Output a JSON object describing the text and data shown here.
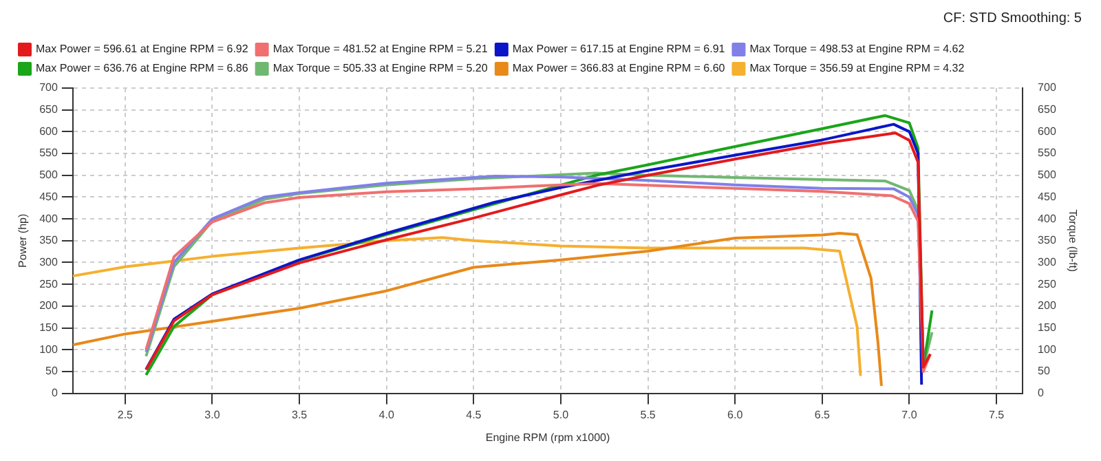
{
  "chart_data": {
    "type": "line",
    "xlabel": "Engine RPM (rpm x1000)",
    "ylabel": "Power (hp)",
    "y2label": "Torque (lb-ft)",
    "annotations": [
      "CF: STD Smoothing: 5"
    ],
    "xlim": [
      2.2,
      7.65
    ],
    "xticks": [
      2.5,
      {
        "value": 3,
        "label": "3.0"
      },
      3.5,
      {
        "value": 4,
        "label": "4.0"
      },
      4.5,
      {
        "value": 5,
        "label": "5.0"
      },
      5.5,
      {
        "value": 6,
        "label": "6.0"
      },
      6.5,
      {
        "value": 7,
        "label": "7.0"
      },
      7.5
    ],
    "ylim": [
      0,
      700
    ],
    "yticks": [
      0,
      50,
      100,
      150,
      200,
      250,
      300,
      350,
      400,
      450,
      500,
      550,
      600,
      650,
      700
    ],
    "y2lim": [
      0,
      700
    ],
    "y2ticks": [
      0,
      50,
      100,
      150,
      200,
      250,
      300,
      350,
      400,
      450,
      500,
      550,
      600,
      650,
      700
    ],
    "grid": true,
    "legend": "top left",
    "marker": "none",
    "line_style": "solid",
    "series": [
      {
        "name": "Max Power = 596.61 at Engine RPM = 6.92",
        "color": "#e31a1c",
        "x": [
          2.62,
          2.78,
          3.0,
          3.5,
          4.0,
          4.5,
          5.0,
          5.21,
          5.5,
          6.0,
          6.5,
          6.92,
          7.0,
          7.05,
          7.08,
          7.12
        ],
        "values": [
          54,
          166,
          226,
          299,
          352,
          402,
          455,
          477,
          500,
          537,
          573,
          597,
          580,
          530,
          60,
          90
        ]
      },
      {
        "name": "Max Torque = 481.52 at Engine RPM = 5.21",
        "color": "#f07070",
        "x": [
          2.62,
          2.78,
          3.0,
          3.3,
          3.5,
          4.0,
          4.5,
          5.0,
          5.21,
          5.5,
          6.0,
          6.5,
          6.9,
          7.0,
          7.05,
          7.08,
          7.12
        ],
        "values": [
          100,
          313,
          393,
          437,
          449,
          462,
          469,
          478,
          481,
          477,
          470,
          463,
          453,
          435,
          395,
          50,
          90
        ]
      },
      {
        "name": "Max Power = 617.15 at Engine RPM = 6.91",
        "color": "#0b16c8",
        "x": [
          2.62,
          2.78,
          3.0,
          3.5,
          4.0,
          4.62,
          5.0,
          5.5,
          6.0,
          6.5,
          6.91,
          7.0,
          7.05,
          7.07
        ],
        "values": [
          55,
          170,
          228,
          306,
          367,
          438,
          472,
          511,
          546,
          581,
          617,
          600,
          550,
          20
        ]
      },
      {
        "name": "Max Torque = 498.53 at Engine RPM = 4.62",
        "color": "#8080e8",
        "x": [
          2.62,
          2.78,
          3.0,
          3.3,
          3.5,
          4.0,
          4.62,
          5.0,
          5.5,
          6.0,
          6.5,
          6.91,
          7.0,
          7.05,
          7.08
        ],
        "values": [
          95,
          300,
          400,
          450,
          460,
          482,
          498,
          496,
          488,
          478,
          470,
          469,
          450,
          410,
          80
        ]
      },
      {
        "name": "Max Power = 636.76 at Engine RPM = 6.86",
        "color": "#1aa51a",
        "x": [
          2.62,
          2.78,
          3.0,
          3.5,
          4.0,
          4.5,
          5.2,
          5.5,
          6.0,
          6.5,
          6.86,
          7.0,
          7.05,
          7.08,
          7.13
        ],
        "values": [
          42,
          153,
          226,
          305,
          364,
          421,
          500,
          524,
          566,
          607,
          637,
          620,
          563,
          60,
          190
        ]
      },
      {
        "name": "Max Torque = 505.33 at Engine RPM = 5.20",
        "color": "#70b870",
        "x": [
          2.62,
          2.78,
          3.0,
          3.3,
          3.5,
          4.0,
          4.5,
          5.2,
          5.5,
          6.0,
          6.5,
          6.86,
          7.0,
          7.05,
          7.08,
          7.13
        ],
        "values": [
          85,
          290,
          395,
          445,
          458,
          478,
          492,
          505,
          500,
          495,
          490,
          487,
          465,
          420,
          60,
          140
        ]
      },
      {
        "name": "Max Power = 366.83 at Engine RPM = 6.60",
        "color": "#e8891a",
        "x": [
          2.2,
          2.5,
          3.0,
          3.5,
          4.0,
          4.5,
          5.0,
          5.5,
          6.0,
          6.5,
          6.6,
          6.7,
          6.78,
          6.82,
          6.84
        ],
        "values": [
          111,
          136,
          165,
          195,
          235,
          289,
          306,
          326,
          356,
          363,
          367,
          364,
          264,
          116,
          17
        ]
      },
      {
        "name": "Max Torque = 356.59 at Engine RPM = 4.32",
        "color": "#f5b030",
        "x": [
          2.2,
          2.5,
          3.0,
          3.5,
          4.0,
          4.32,
          4.5,
          5.0,
          5.5,
          6.0,
          6.4,
          6.6,
          6.7,
          6.72
        ],
        "values": [
          269,
          290,
          314,
          333,
          350,
          357,
          350,
          338,
          333,
          333,
          333,
          326,
          153,
          40
        ]
      }
    ]
  }
}
